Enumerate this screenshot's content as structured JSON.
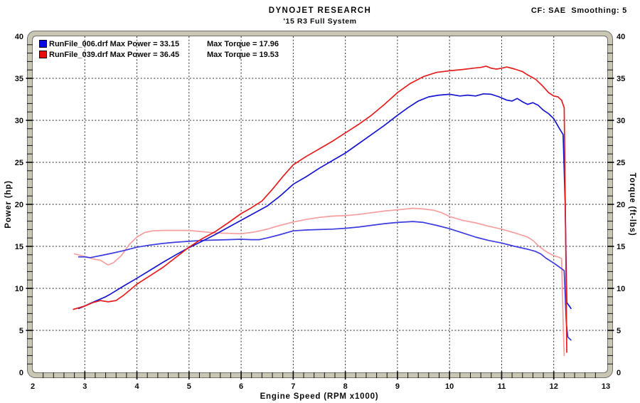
{
  "header": {
    "title": "DYNOJET RESEARCH",
    "subtitle": "'15 R3 Full System",
    "correction_info": "CF: SAE  Smoothing: 5"
  },
  "legend": {
    "runs": [
      {
        "swatch_color": "#0a0ae0",
        "file": "RunFile_006.drf",
        "max_power": "Max Power = 33.15",
        "max_torque": "Max Torque = 17.96"
      },
      {
        "swatch_color": "#e60d0d",
        "file": "RunFile_039.drf",
        "max_power": "Max Power = 36.45",
        "max_torque": "Max Torque = 19.53"
      }
    ]
  },
  "chart_data": {
    "type": "line",
    "xlabel": "Engine Speed (RPM x1000)",
    "ylabel_left": "Power (hp)",
    "ylabel_right": "Torque (ft-lbs)",
    "xlim": [
      2,
      13
    ],
    "ylim": [
      0,
      40
    ],
    "x_ticks": [
      2,
      3,
      4,
      5,
      6,
      7,
      8,
      9,
      10,
      11,
      12,
      13
    ],
    "y_ticks": [
      0,
      5,
      10,
      15,
      20,
      25,
      30,
      35,
      40
    ],
    "x_minor_step": 0.2,
    "y_minor_step": 1,
    "grid": "dashed",
    "style": {
      "band_fill": "#cac6b4",
      "band_outline": "#73736e",
      "grid_color": "#2b2b2b",
      "tick_color": "#111111"
    },
    "series": [
      {
        "name": "torque_runfile039",
        "color": "#f79e9e",
        "width": 1.7,
        "points": [
          [
            2.8,
            14.1
          ],
          [
            3.0,
            13.8
          ],
          [
            3.2,
            13.45
          ],
          [
            3.3,
            13.35
          ],
          [
            3.4,
            12.95
          ],
          [
            3.45,
            12.8
          ],
          [
            3.55,
            13.05
          ],
          [
            3.7,
            13.9
          ],
          [
            3.85,
            15.2
          ],
          [
            4.0,
            16.1
          ],
          [
            4.15,
            16.65
          ],
          [
            4.3,
            16.85
          ],
          [
            4.5,
            16.9
          ],
          [
            4.75,
            16.9
          ],
          [
            5.0,
            16.9
          ],
          [
            5.25,
            16.75
          ],
          [
            5.5,
            16.6
          ],
          [
            5.75,
            16.55
          ],
          [
            6.0,
            16.5
          ],
          [
            6.25,
            16.7
          ],
          [
            6.5,
            17.05
          ],
          [
            6.75,
            17.5
          ],
          [
            7.0,
            17.9
          ],
          [
            7.25,
            18.2
          ],
          [
            7.5,
            18.45
          ],
          [
            7.75,
            18.6
          ],
          [
            8.0,
            18.65
          ],
          [
            8.25,
            18.8
          ],
          [
            8.5,
            19.0
          ],
          [
            8.75,
            19.2
          ],
          [
            9.0,
            19.35
          ],
          [
            9.3,
            19.53
          ],
          [
            9.5,
            19.45
          ],
          [
            9.7,
            19.3
          ],
          [
            9.85,
            19.0
          ],
          [
            10.0,
            18.55
          ],
          [
            10.25,
            18.1
          ],
          [
            10.5,
            17.8
          ],
          [
            10.75,
            17.4
          ],
          [
            11.0,
            17.05
          ],
          [
            11.25,
            16.6
          ],
          [
            11.5,
            16.1
          ],
          [
            11.6,
            15.7
          ],
          [
            11.7,
            15.1
          ],
          [
            11.8,
            14.6
          ],
          [
            11.9,
            14.2
          ],
          [
            12.0,
            13.9
          ],
          [
            12.1,
            13.7
          ],
          [
            12.15,
            13.55
          ],
          [
            12.18,
            6.0
          ],
          [
            12.2,
            2.0
          ]
        ]
      },
      {
        "name": "torque_runfile006",
        "color": "#3c3ce0",
        "width": 1.7,
        "points": [
          [
            2.88,
            13.75
          ],
          [
            3.0,
            13.75
          ],
          [
            3.1,
            13.65
          ],
          [
            3.3,
            13.9
          ],
          [
            3.5,
            14.15
          ],
          [
            3.75,
            14.5
          ],
          [
            4.0,
            14.9
          ],
          [
            4.25,
            15.15
          ],
          [
            4.5,
            15.35
          ],
          [
            4.75,
            15.5
          ],
          [
            5.0,
            15.6
          ],
          [
            5.25,
            15.7
          ],
          [
            5.5,
            15.75
          ],
          [
            5.75,
            15.8
          ],
          [
            6.0,
            15.85
          ],
          [
            6.2,
            15.8
          ],
          [
            6.35,
            15.8
          ],
          [
            6.5,
            16.0
          ],
          [
            6.75,
            16.4
          ],
          [
            7.0,
            16.85
          ],
          [
            7.25,
            16.95
          ],
          [
            7.5,
            17.0
          ],
          [
            7.75,
            17.05
          ],
          [
            8.0,
            17.15
          ],
          [
            8.25,
            17.3
          ],
          [
            8.5,
            17.5
          ],
          [
            8.75,
            17.7
          ],
          [
            9.0,
            17.85
          ],
          [
            9.3,
            17.96
          ],
          [
            9.5,
            17.85
          ],
          [
            9.75,
            17.5
          ],
          [
            10.0,
            17.1
          ],
          [
            10.25,
            16.6
          ],
          [
            10.5,
            16.1
          ],
          [
            10.75,
            15.7
          ],
          [
            11.0,
            15.4
          ],
          [
            11.25,
            15.0
          ],
          [
            11.5,
            14.65
          ],
          [
            11.65,
            14.4
          ],
          [
            11.75,
            14.1
          ],
          [
            11.85,
            13.6
          ],
          [
            11.95,
            13.2
          ],
          [
            12.05,
            12.8
          ],
          [
            12.15,
            12.35
          ],
          [
            12.2,
            12.1
          ],
          [
            12.24,
            6.0
          ],
          [
            12.27,
            4.2
          ],
          [
            12.33,
            3.85
          ]
        ]
      },
      {
        "name": "power_runfile006",
        "color": "#1717d2",
        "width": 1.7,
        "points": [
          [
            2.88,
            7.6
          ],
          [
            3.0,
            7.9
          ],
          [
            3.1,
            8.2
          ],
          [
            3.25,
            8.6
          ],
          [
            3.4,
            9.0
          ],
          [
            3.5,
            9.35
          ],
          [
            3.75,
            10.3
          ],
          [
            4.0,
            11.2
          ],
          [
            4.25,
            12.15
          ],
          [
            4.5,
            13.1
          ],
          [
            4.75,
            14.0
          ],
          [
            5.0,
            14.85
          ],
          [
            5.25,
            15.6
          ],
          [
            5.5,
            16.4
          ],
          [
            5.75,
            17.25
          ],
          [
            6.0,
            18.1
          ],
          [
            6.25,
            18.95
          ],
          [
            6.5,
            19.8
          ],
          [
            6.75,
            21.0
          ],
          [
            7.0,
            22.4
          ],
          [
            7.25,
            23.3
          ],
          [
            7.5,
            24.3
          ],
          [
            7.75,
            25.2
          ],
          [
            8.0,
            26.1
          ],
          [
            8.25,
            27.2
          ],
          [
            8.5,
            28.3
          ],
          [
            8.75,
            29.4
          ],
          [
            9.0,
            30.6
          ],
          [
            9.2,
            31.5
          ],
          [
            9.4,
            32.3
          ],
          [
            9.6,
            32.8
          ],
          [
            9.8,
            33.0
          ],
          [
            10.0,
            33.1
          ],
          [
            10.2,
            32.9
          ],
          [
            10.35,
            33.0
          ],
          [
            10.5,
            32.9
          ],
          [
            10.65,
            33.15
          ],
          [
            10.8,
            33.1
          ],
          [
            10.95,
            32.8
          ],
          [
            11.1,
            32.4
          ],
          [
            11.2,
            32.3
          ],
          [
            11.3,
            32.6
          ],
          [
            11.4,
            32.2
          ],
          [
            11.5,
            31.9
          ],
          [
            11.6,
            32.1
          ],
          [
            11.7,
            31.8
          ],
          [
            11.8,
            31.2
          ],
          [
            11.9,
            30.8
          ],
          [
            12.0,
            30.2
          ],
          [
            12.1,
            29.1
          ],
          [
            12.18,
            28.3
          ],
          [
            12.22,
            20.0
          ],
          [
            12.25,
            8.3
          ],
          [
            12.3,
            7.9
          ],
          [
            12.33,
            7.6
          ]
        ]
      },
      {
        "name": "power_runfile039",
        "color": "#e61e1e",
        "width": 1.7,
        "points": [
          [
            2.78,
            7.5
          ],
          [
            3.0,
            7.9
          ],
          [
            3.15,
            8.3
          ],
          [
            3.3,
            8.55
          ],
          [
            3.45,
            8.4
          ],
          [
            3.6,
            8.55
          ],
          [
            3.75,
            9.2
          ],
          [
            4.0,
            10.5
          ],
          [
            4.25,
            11.5
          ],
          [
            4.5,
            12.5
          ],
          [
            4.75,
            13.7
          ],
          [
            5.0,
            14.9
          ],
          [
            5.25,
            15.9
          ],
          [
            5.5,
            16.75
          ],
          [
            5.75,
            17.8
          ],
          [
            6.0,
            18.9
          ],
          [
            6.2,
            19.6
          ],
          [
            6.4,
            20.4
          ],
          [
            6.6,
            21.8
          ],
          [
            6.8,
            23.3
          ],
          [
            7.0,
            24.7
          ],
          [
            7.25,
            25.7
          ],
          [
            7.5,
            26.6
          ],
          [
            7.75,
            27.5
          ],
          [
            8.0,
            28.5
          ],
          [
            8.25,
            29.5
          ],
          [
            8.5,
            30.6
          ],
          [
            8.75,
            31.9
          ],
          [
            9.0,
            33.3
          ],
          [
            9.25,
            34.4
          ],
          [
            9.5,
            35.2
          ],
          [
            9.75,
            35.7
          ],
          [
            10.0,
            35.9
          ],
          [
            10.25,
            36.05
          ],
          [
            10.45,
            36.2
          ],
          [
            10.6,
            36.3
          ],
          [
            10.7,
            36.45
          ],
          [
            10.8,
            36.2
          ],
          [
            10.9,
            36.1
          ],
          [
            11.0,
            36.2
          ],
          [
            11.1,
            36.35
          ],
          [
            11.25,
            36.1
          ],
          [
            11.4,
            35.8
          ],
          [
            11.5,
            35.4
          ],
          [
            11.65,
            34.9
          ],
          [
            11.8,
            34.0
          ],
          [
            11.9,
            33.3
          ],
          [
            12.0,
            32.9
          ],
          [
            12.08,
            32.8
          ],
          [
            12.15,
            32.4
          ],
          [
            12.2,
            31.5
          ],
          [
            12.23,
            15.0
          ],
          [
            12.25,
            2.4
          ]
        ]
      }
    ]
  }
}
